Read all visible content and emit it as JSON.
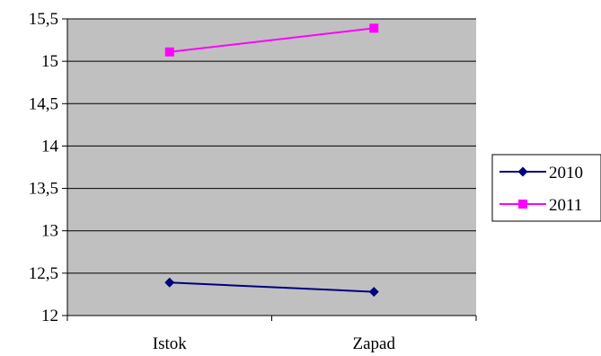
{
  "chart_data": {
    "type": "line",
    "categories": [
      "Istok",
      "Zapad"
    ],
    "series": [
      {
        "name": "2010",
        "values": [
          12.39,
          12.28
        ],
        "color": "#000080",
        "marker": "diamond"
      },
      {
        "name": "2011",
        "values": [
          15.11,
          15.39
        ],
        "color": "#FF00FF",
        "marker": "square"
      }
    ],
    "ylim": [
      12,
      15.5
    ],
    "ytick_step": 0.5,
    "ytick_labels": [
      "12",
      "12,5",
      "13",
      "13,5",
      "14",
      "14,5",
      "15",
      "15,5"
    ],
    "plot_background": "#C0C0C0",
    "grid": true,
    "legend_position": "right"
  }
}
